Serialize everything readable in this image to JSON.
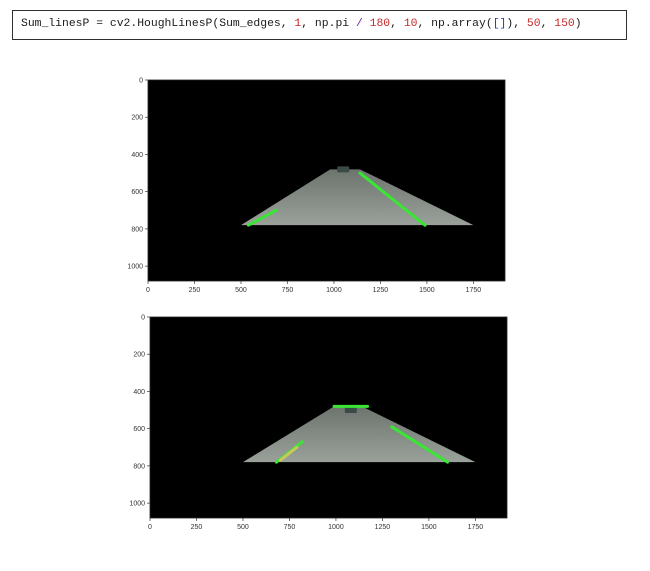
{
  "code": {
    "tokens": [
      {
        "text": "Sum_linesP = cv2.HoughLinesP(Sum_edges, ",
        "cls": ""
      },
      {
        "text": "1",
        "cls": "c-num"
      },
      {
        "text": ", np.pi ",
        "cls": ""
      },
      {
        "text": "/",
        "cls": "c-op"
      },
      {
        "text": " ",
        "cls": ""
      },
      {
        "text": "180",
        "cls": "c-num"
      },
      {
        "text": ", ",
        "cls": ""
      },
      {
        "text": "10",
        "cls": "c-num"
      },
      {
        "text": ", np.array(",
        "cls": ""
      },
      {
        "text": "[]",
        "cls": "c-br"
      },
      {
        "text": "), ",
        "cls": ""
      },
      {
        "text": "50",
        "cls": "c-num"
      },
      {
        "text": ", ",
        "cls": ""
      },
      {
        "text": "150",
        "cls": "c-num"
      },
      {
        "text": ")",
        "cls": ""
      }
    ]
  },
  "colors": {
    "plot_bg": "#000000",
    "road": "#9aa09a",
    "road_far": "#6d746e",
    "lane": "#39e633",
    "lane_yellow": "#c8c85a",
    "car": "#3a4a46"
  },
  "chart_data": [
    {
      "type": "image",
      "xlim": [
        0,
        1920
      ],
      "ylim": [
        1080,
        0
      ],
      "x_ticks": [
        0,
        250,
        500,
        750,
        1000,
        1250,
        1500,
        1750
      ],
      "y_ticks": [
        0,
        200,
        400,
        600,
        800,
        1000
      ],
      "road": [
        [
          500,
          780
        ],
        [
          980,
          480
        ],
        [
          1140,
          480
        ],
        [
          1750,
          780
        ]
      ],
      "lanes": [
        {
          "x1": 540,
          "y1": 780,
          "x2": 690,
          "y2": 700,
          "color": "lane"
        },
        {
          "x1": 1140,
          "y1": 500,
          "x2": 1490,
          "y2": 780,
          "color": "lane"
        }
      ],
      "car": {
        "x": 1050,
        "y": 480
      }
    },
    {
      "type": "image",
      "xlim": [
        0,
        1920
      ],
      "ylim": [
        1080,
        0
      ],
      "x_ticks": [
        0,
        250,
        500,
        750,
        1000,
        1250,
        1500,
        1750
      ],
      "y_ticks": [
        0,
        200,
        400,
        600,
        800,
        1000
      ],
      "road": [
        [
          500,
          780
        ],
        [
          990,
          480
        ],
        [
          1140,
          480
        ],
        [
          1750,
          780
        ]
      ],
      "lanes": [
        {
          "x1": 680,
          "y1": 780,
          "x2": 820,
          "y2": 670,
          "color": "lane"
        },
        {
          "x1": 700,
          "y1": 770,
          "x2": 790,
          "y2": 700,
          "color": "lane_yellow"
        },
        {
          "x1": 1300,
          "y1": 590,
          "x2": 1600,
          "y2": 780,
          "color": "lane"
        },
        {
          "x1": 990,
          "y1": 480,
          "x2": 1170,
          "y2": 480,
          "color": "lane"
        }
      ],
      "car": {
        "x": 1080,
        "y": 500
      }
    }
  ]
}
